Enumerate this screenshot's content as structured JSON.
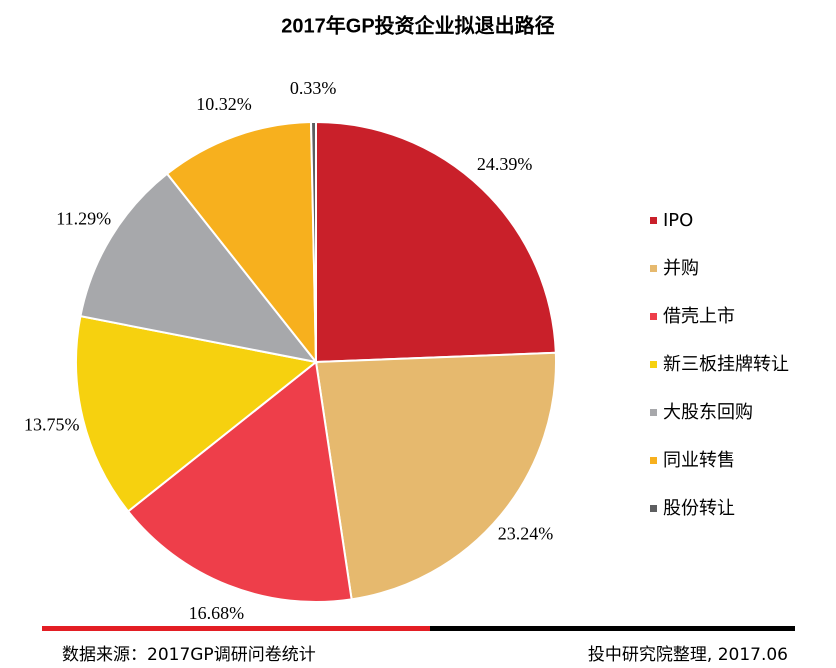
{
  "chart_data": {
    "type": "pie",
    "title": "2017年GP投资企业拟退出路径",
    "categories": [
      "IPO",
      "并购",
      "借壳上市",
      "新三板挂牌转让",
      "大股东回购",
      "同业转售",
      "股份转让"
    ],
    "values": [
      24.39,
      23.24,
      16.68,
      13.75,
      11.29,
      10.32,
      0.33
    ],
    "value_labels": [
      "24.39%",
      "23.24%",
      "16.68%",
      "13.75%",
      "11.29%",
      "10.32%",
      "0.33%"
    ],
    "colors": [
      "#c9202a",
      "#e6b96e",
      "#ee3e4a",
      "#f6d10f",
      "#a7a8ab",
      "#f7b01e",
      "#5d5e60"
    ],
    "legend": "right",
    "source": "数据来源：2017GP调研问卷统计",
    "note": "投中研究院整理, 2017.06"
  }
}
